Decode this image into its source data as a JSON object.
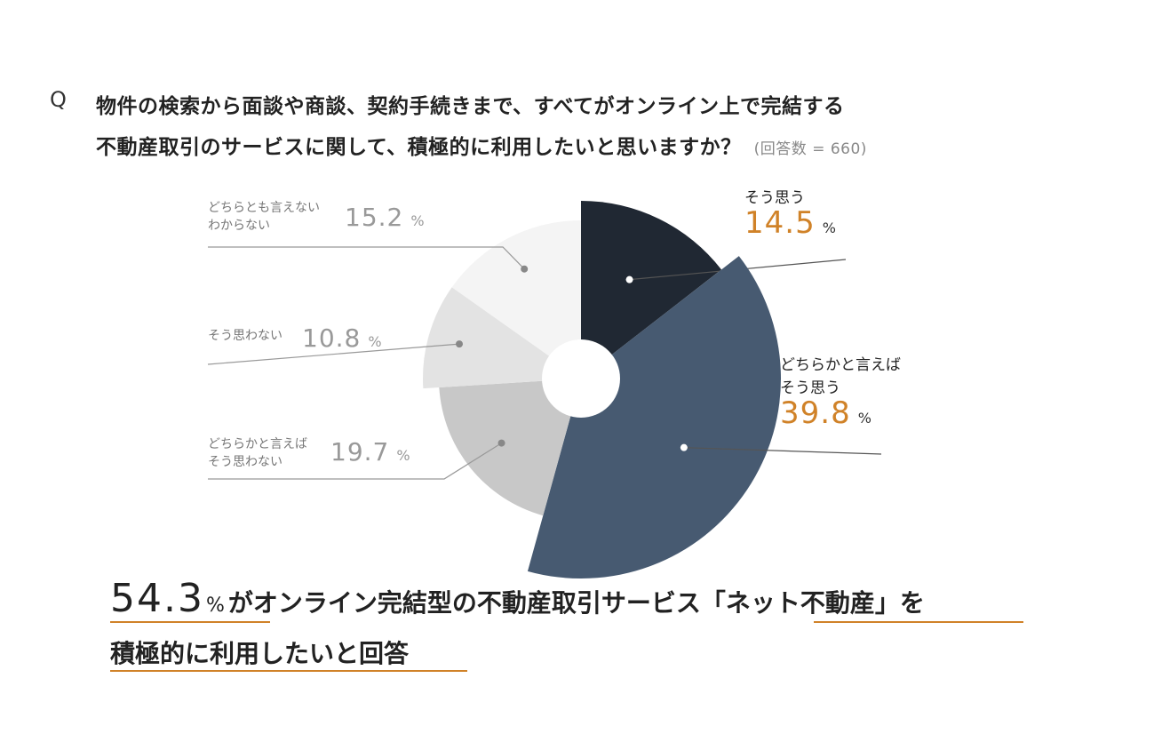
{
  "question": {
    "mark": "Q",
    "line1": "物件の検索から面談や商談、契約手続きまで、すべてがオンライン上で完結する",
    "line2": "不動産取引のサービスに関して、積極的に利用したいと思いますか？",
    "count": "(回答数 = 660)"
  },
  "chart_data": {
    "type": "pie",
    "donut": true,
    "slices": [
      {
        "line1": "そう思う",
        "line2": "",
        "value": 14.5,
        "value_label": "14.5",
        "unit": "%",
        "color": "#202833",
        "highlight": true
      },
      {
        "line1": "どちらかと言えば",
        "line2": "そう思う",
        "value": 39.8,
        "value_label": "39.8",
        "unit": "%",
        "color": "#475A71",
        "highlight": true
      },
      {
        "line1": "どちらかと言えば",
        "line2": "そう思わない",
        "value": 19.7,
        "value_label": "19.7",
        "unit": "%",
        "color": "#C8C8C8",
        "highlight": false
      },
      {
        "line1": "そう思わない",
        "line2": "",
        "value": 10.8,
        "value_label": "10.8",
        "unit": "%",
        "color": "#E3E3E3",
        "highlight": false
      },
      {
        "line1": "どちらとも言えない",
        "line2": "わからない",
        "value": 15.2,
        "value_label": "15.2",
        "unit": "%",
        "color": "#F4F4F4",
        "highlight": false
      }
    ]
  },
  "summary": {
    "big_value": "54.3",
    "big_unit": "%",
    "line1_rest": "がオンライン完結型の不動産取引サービス「ネット不動産」を",
    "line2": "積極的に利用したいと回答"
  },
  "colors": {
    "accent": "#D08228",
    "leader_line": "#555555",
    "light_leader": "#999999"
  }
}
